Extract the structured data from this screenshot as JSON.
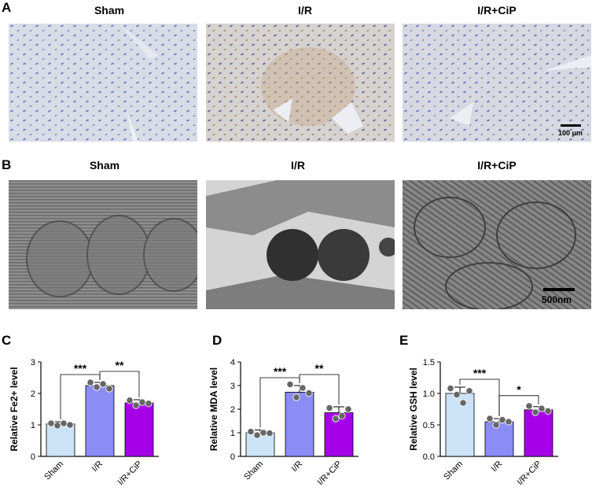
{
  "panels": {
    "A": {
      "letter": "A",
      "titles": [
        "Sham",
        "I/R",
        "I/R+CiP"
      ],
      "scale_bar": "100 μm"
    },
    "B": {
      "letter": "B",
      "titles": [
        "Sham",
        "I/R",
        "I/R+CiP"
      ],
      "scale_bar": "500nm"
    }
  },
  "chart_data": [
    {
      "panel": "C",
      "type": "bar",
      "ylabel": "Relative Fe2+ level",
      "ylim": [
        0,
        3
      ],
      "yticks": [
        "0",
        "1",
        "2",
        "3"
      ],
      "categories": [
        "Sham",
        "I/R",
        "I/R+CiP"
      ],
      "values": [
        1.03,
        2.25,
        1.7
      ],
      "errors": [
        0.07,
        0.1,
        0.1
      ],
      "points": [
        [
          1.05,
          0.98,
          1.05,
          1.0
        ],
        [
          2.35,
          2.2,
          2.3,
          2.15
        ],
        [
          1.78,
          1.62,
          1.72,
          1.68
        ]
      ],
      "colors": [
        "#cce3f7",
        "#8c8cf5",
        "#a600e8"
      ],
      "significance": [
        {
          "from": 0,
          "to": 1,
          "label": "***"
        },
        {
          "from": 1,
          "to": 2,
          "label": "**"
        }
      ]
    },
    {
      "panel": "D",
      "type": "bar",
      "ylabel": "Relative MDA level",
      "ylim": [
        0,
        4
      ],
      "yticks": [
        "0",
        "1",
        "2",
        "3",
        "4"
      ],
      "categories": [
        "Sham",
        "I/R",
        "I/R+CiP"
      ],
      "values": [
        1.0,
        2.72,
        1.85
      ],
      "errors": [
        0.12,
        0.28,
        0.25
      ],
      "points": [
        [
          1.05,
          0.9,
          1.0,
          0.98
        ],
        [
          3.05,
          2.5,
          2.9,
          2.68
        ],
        [
          2.05,
          1.6,
          1.72,
          2.0
        ]
      ],
      "colors": [
        "#cce3f7",
        "#8c8cf5",
        "#a600e8"
      ],
      "significance": [
        {
          "from": 0,
          "to": 1,
          "label": "***"
        },
        {
          "from": 1,
          "to": 2,
          "label": "**"
        }
      ]
    },
    {
      "panel": "E",
      "type": "bar",
      "ylabel": "Relative GSH level",
      "ylim": [
        0,
        1.5
      ],
      "yticks": [
        "0.0",
        "0.5",
        "1.0",
        "1.5"
      ],
      "categories": [
        "Sham",
        "I/R",
        "I/R+CiP"
      ],
      "values": [
        1.0,
        0.55,
        0.74
      ],
      "errors": [
        0.1,
        0.05,
        0.05
      ],
      "points": [
        [
          1.08,
          0.98,
          0.85,
          1.04
        ],
        [
          0.6,
          0.5,
          0.58,
          0.55
        ],
        [
          0.8,
          0.7,
          0.76,
          0.72
        ]
      ],
      "colors": [
        "#cce3f7",
        "#8c8cf5",
        "#a600e8"
      ],
      "significance": [
        {
          "from": 0,
          "to": 1,
          "label": "***"
        },
        {
          "from": 1,
          "to": 2,
          "label": "*"
        }
      ]
    }
  ]
}
